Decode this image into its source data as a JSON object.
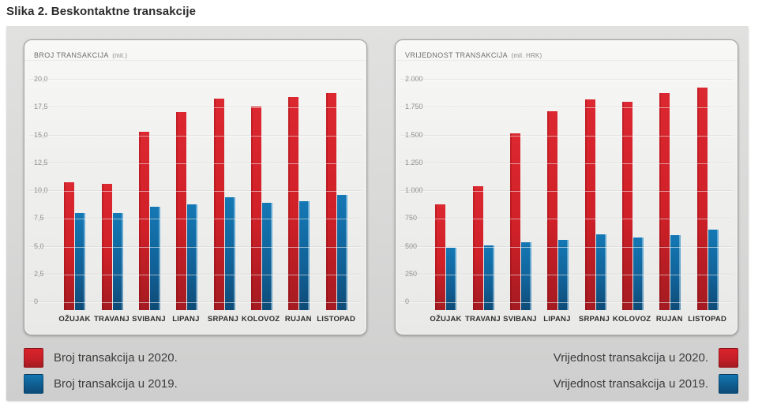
{
  "figure_title": "Slika 2. Beskontaktne transakcije",
  "colors": {
    "red_2020": "#d02028",
    "blue_2019": "#1274af",
    "panel_background": "#f2f2f0",
    "canvas_background": "#d8d8d7",
    "grid_line": "#dedede",
    "text_dark": "#2e2e2e",
    "text_muted": "#909090"
  },
  "chart_data": [
    {
      "type": "bar",
      "title": "BROJ TRANSAKCIJA",
      "unit_label": "(mil.)",
      "categories": [
        "OŽUJAK",
        "TRAVANJ",
        "SVIBANJ",
        "LIPANJ",
        "SRPANJ",
        "KOLOVOZ",
        "RUJAN",
        "LISTOPAD"
      ],
      "series": [
        {
          "name": "Broj transakcija u 2020.",
          "color": "#d02028",
          "values": [
            10.6,
            10.4,
            15.1,
            16.9,
            18.1,
            17.4,
            18.2,
            18.6
          ]
        },
        {
          "name": "Broj transakcija u 2019.",
          "color": "#1274af",
          "values": [
            7.8,
            7.8,
            8.4,
            8.6,
            9.2,
            8.7,
            8.9,
            9.4
          ]
        }
      ],
      "ylim": [
        0,
        20
      ],
      "y_tick_labels": [
        "20,0",
        "17,5",
        "15,0",
        "12,5",
        "10,0",
        "7,5",
        "5,0",
        "2,5",
        "0"
      ],
      "grid": true,
      "legend_position": "bottom-left"
    },
    {
      "type": "bar",
      "title": "VRIJEDNOST TRANSAKCIJA",
      "unit_label": "(mil. HRK)",
      "categories": [
        "OŽUJAK",
        "TRAVANJ",
        "SVIBANJ",
        "LIPANJ",
        "SRPANJ",
        "KOLOVOZ",
        "RUJAN",
        "LISTOPAD"
      ],
      "series": [
        {
          "name": "Vrijednost transakcija u 2020.",
          "color": "#d02028",
          "values": [
            860,
            1020,
            1500,
            1695,
            1805,
            1780,
            1855,
            1905
          ]
        },
        {
          "name": "Vrijednost transakcija u 2019.",
          "color": "#1274af",
          "values": [
            470,
            490,
            515,
            540,
            590,
            560,
            580,
            630
          ]
        }
      ],
      "ylim": [
        0,
        2000
      ],
      "y_tick_labels": [
        "2.000",
        "1.750",
        "1.500",
        "1.250",
        "1.000",
        "750",
        "500",
        "250",
        "0"
      ],
      "grid": true,
      "legend_position": "bottom-right"
    }
  ],
  "legend_left": {
    "items": [
      {
        "label": "Broj transakcija u 2020.",
        "color": "#d02028"
      },
      {
        "label": "Broj transakcija u 2019.",
        "color": "#1274af"
      }
    ]
  },
  "legend_right": {
    "items": [
      {
        "label": "Vrijednost transakcija u 2020.",
        "color": "#d02028"
      },
      {
        "label": "Vrijednost transakcija u 2019.",
        "color": "#1274af"
      }
    ]
  }
}
